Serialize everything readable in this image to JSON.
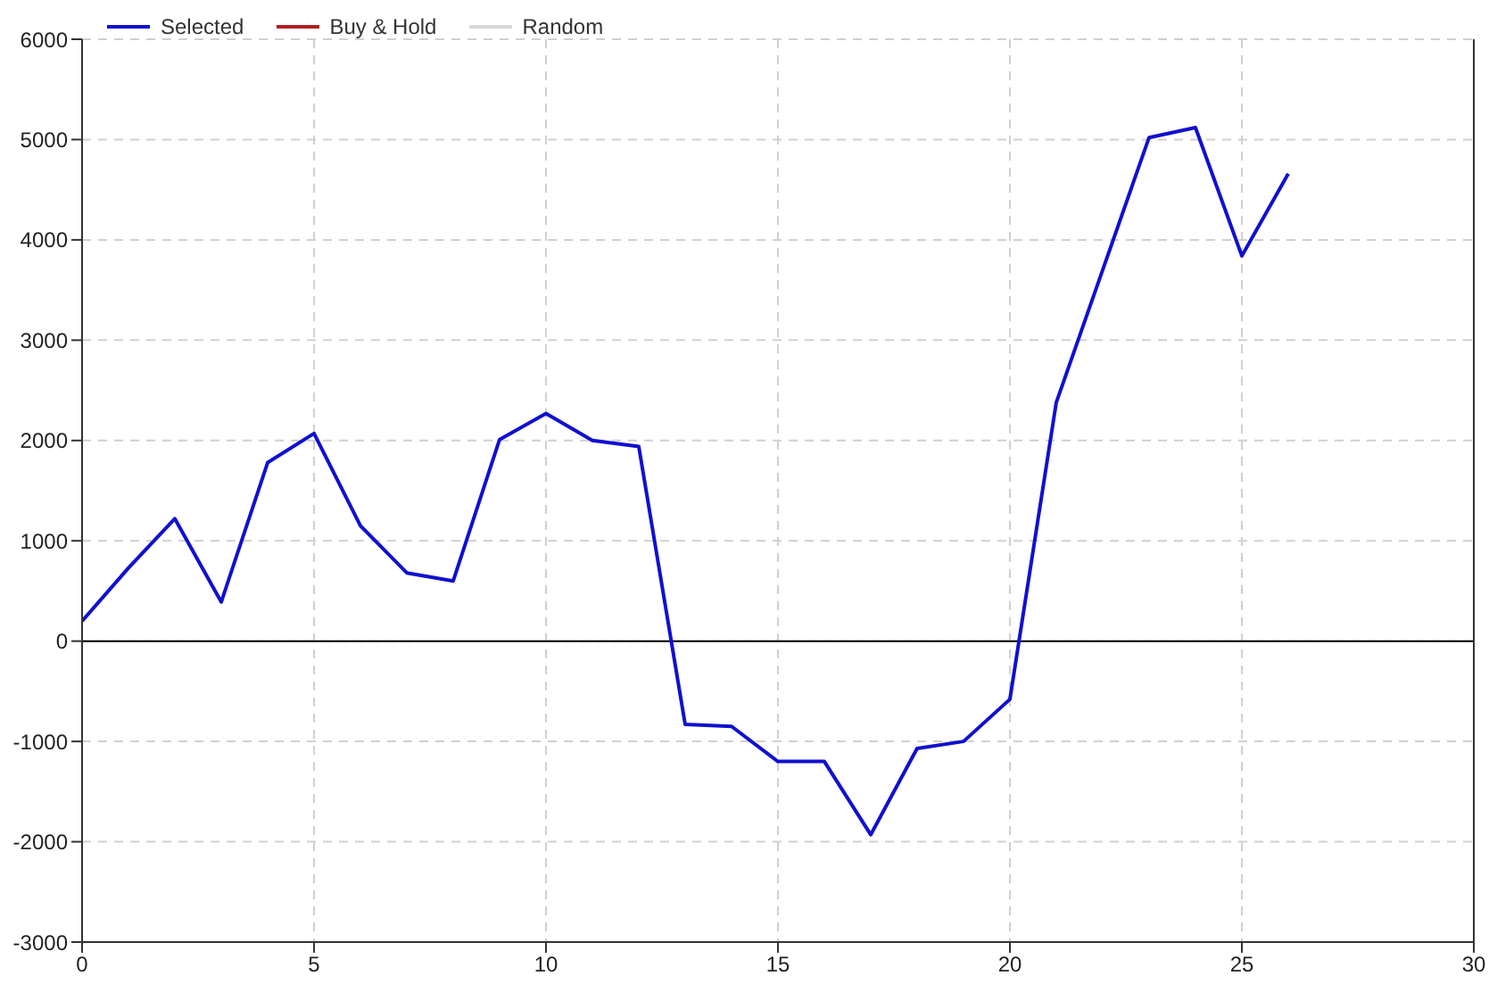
{
  "chart_data": {
    "type": "line",
    "x": [
      0,
      1,
      2,
      3,
      4,
      5,
      6,
      7,
      8,
      9,
      10,
      11,
      12,
      13,
      14,
      15,
      16,
      17,
      18,
      19,
      20,
      21,
      22,
      23,
      24,
      25,
      26
    ],
    "series": [
      {
        "name": "Selected",
        "color": "#1010d0",
        "values": [
          200,
          730,
          1220,
          390,
          1780,
          2070,
          1150,
          680,
          600,
          2010,
          2270,
          2000,
          1940,
          -830,
          -850,
          -1200,
          -1200,
          -1930,
          -1070,
          -1000,
          -580,
          2380,
          3700,
          5020,
          5120,
          3840,
          4660
        ]
      },
      {
        "name": "Buy & Hold",
        "color": "#b02020",
        "values": [
          null,
          null,
          null,
          null,
          null,
          null,
          null,
          null,
          null,
          null,
          null,
          null,
          null,
          null,
          null,
          null,
          null,
          null,
          null,
          null,
          null,
          null,
          null,
          null,
          null,
          null,
          null
        ]
      },
      {
        "name": "Random",
        "color": "#d8d8d8",
        "values": [
          null,
          null,
          null,
          null,
          null,
          null,
          null,
          null,
          null,
          null,
          null,
          null,
          null,
          null,
          null,
          null,
          null,
          null,
          null,
          null,
          null,
          null,
          null,
          null,
          null,
          null,
          null
        ]
      }
    ],
    "xlim": [
      0,
      30
    ],
    "xticks": [
      0,
      5,
      10,
      15,
      20,
      25,
      30
    ],
    "ylim": [
      -3000,
      6000
    ],
    "yticks": [
      -3000,
      -2000,
      -1000,
      0,
      1000,
      2000,
      3000,
      4000,
      5000,
      6000
    ],
    "ref_lines": [
      {
        "axis": "y",
        "value": 0,
        "color": "#000000"
      }
    ],
    "grid": true,
    "legend": "top left",
    "marker": "none",
    "line_style": "solid"
  }
}
